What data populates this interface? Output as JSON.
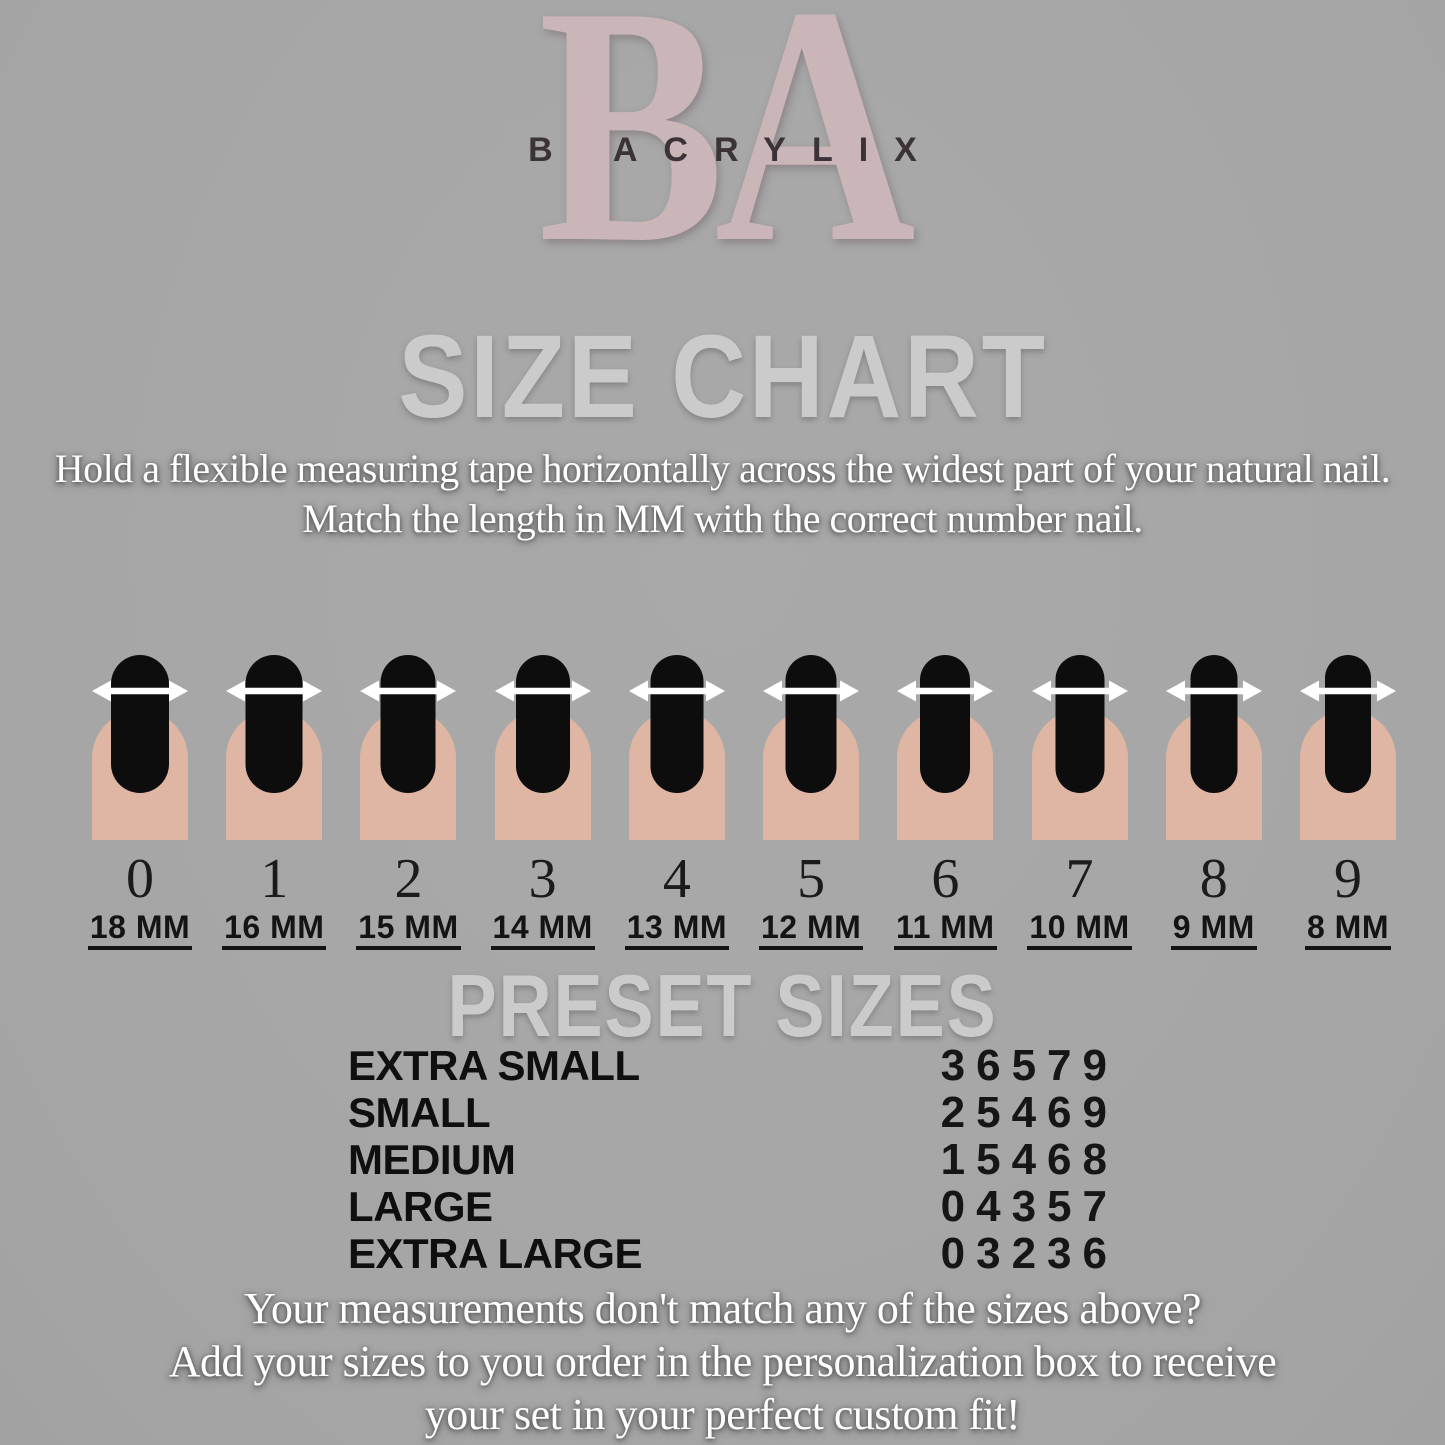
{
  "brand": {
    "monogram": "BA",
    "wordmark": "B ACRYLIX"
  },
  "title": "SIZE CHART",
  "instructions": {
    "measure": "Hold a flexible measuring tape horizontally across the widest part of your natural nail.",
    "match": "Match the length in MM with the correct number nail."
  },
  "nail_sizes": [
    {
      "number": "0",
      "width": "18 MM"
    },
    {
      "number": "1",
      "width": "16 MM"
    },
    {
      "number": "2",
      "width": "15 MM"
    },
    {
      "number": "3",
      "width": "14 MM"
    },
    {
      "number": "4",
      "width": "13 MM"
    },
    {
      "number": "5",
      "width": "12 MM"
    },
    {
      "number": "6",
      "width": "11 MM"
    },
    {
      "number": "7",
      "width": "10 MM"
    },
    {
      "number": "8",
      "width": "9 MM"
    },
    {
      "number": "9",
      "width": "8 MM"
    }
  ],
  "preset_heading": "PRESET SIZES",
  "preset_sizes": [
    {
      "label": "EXTRA SMALL",
      "sizes": "36579"
    },
    {
      "label": "SMALL",
      "sizes": "25469"
    },
    {
      "label": "MEDIUM",
      "sizes": "15468"
    },
    {
      "label": "LARGE",
      "sizes": "04357"
    },
    {
      "label": "EXTRA LARGE",
      "sizes": "03236"
    }
  ],
  "footer": {
    "line1": "Your measurements don't match any of the sizes above?",
    "line2": "Add your sizes to you order in the personalization box to receive",
    "line3": "your set in your perfect custom fit!"
  },
  "colors": {
    "bg": "#a6a6a6",
    "logo": "#cab5b9",
    "wordmark": "#3b3337",
    "heading": "#cbcbcb",
    "finger": "#dfb5a3",
    "nail": "#0d0d0d",
    "arrow": "#ffffff",
    "ink": "#141414",
    "light": "#ffffff"
  }
}
